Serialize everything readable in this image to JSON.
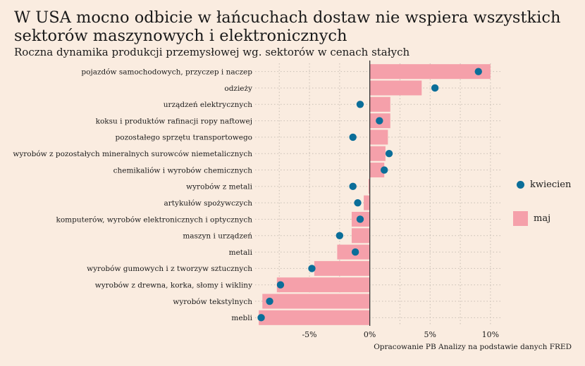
{
  "title": "W USA mocno odbicie w łańcuchach dostaw nie wspiera wszystkich sektorów maszynowych i elektronicznych",
  "subtitle": "Roczna dynamika produkcji przemysłowej wg. sektorów w cenach stałych",
  "source": "Opracowanie PB Analizy na podstawie danych FRED",
  "colors": {
    "background": "#faece0",
    "bar": "#f5a0aa",
    "dot": "#0b6e99",
    "grid": "#c8beb4",
    "zero_line": "#333333"
  },
  "legend": {
    "dot_label": "kwiecien",
    "bar_label": "maj"
  },
  "chart_data": {
    "type": "bar",
    "orientation": "horizontal",
    "categories": [
      "pojazdów samochodowych, przyczep i naczep",
      "odzieży",
      "urządzeń elektrycznych",
      "koksu i produktów rafinacji ropy naftowej",
      "pozostałego sprzętu transportowego",
      "wyrobów z pozostałych mineralnych surowców niemetalicznych",
      "chemikaliów i wyrobów chemicznych",
      "wyrobów z metali",
      "artykułów spożywczych",
      "komputerów, wyrobów elektronicznych i optycznych",
      "maszyn i urządzeń",
      "metali",
      "wyrobów gumowych i z tworzyw sztucznych",
      "wyrobów z drewna, korka, słomy i wikliny",
      "wyrobów tekstylnych",
      "mebli"
    ],
    "series": [
      {
        "name": "maj",
        "kind": "bar",
        "values": [
          10.0,
          4.3,
          1.7,
          1.7,
          1.5,
          1.3,
          1.2,
          -0.1,
          -0.5,
          -1.5,
          -1.5,
          -2.7,
          -4.6,
          -7.7,
          -8.9,
          -9.2
        ]
      },
      {
        "name": "kwiecien",
        "kind": "point",
        "values": [
          9.0,
          5.4,
          -0.8,
          0.8,
          -1.4,
          1.6,
          1.2,
          -1.4,
          -1.0,
          -0.8,
          -2.5,
          -1.2,
          -4.8,
          -7.4,
          -8.3,
          -9.0
        ]
      }
    ],
    "xlim": [
      -9.5,
      11
    ],
    "xticks": [
      -5,
      0,
      5,
      10
    ],
    "xtick_labels": [
      "-5%",
      "0%",
      "5%",
      "10%"
    ],
    "xlabel": "",
    "ylabel": "",
    "grid": true
  }
}
